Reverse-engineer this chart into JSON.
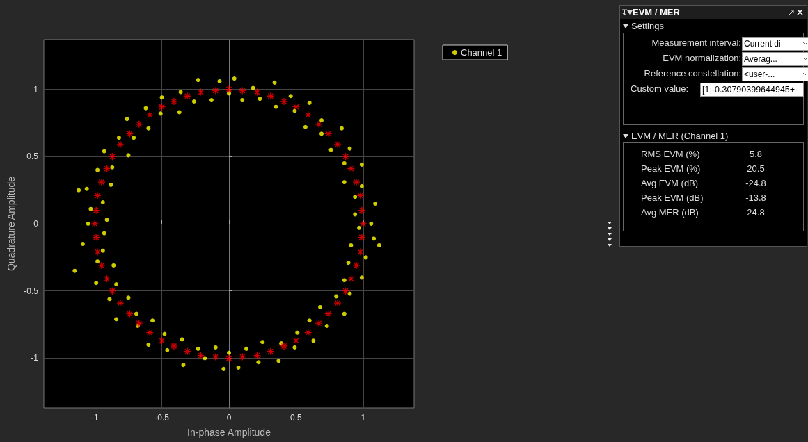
{
  "chart_data": [
    {
      "type": "scatter",
      "xlabel": "In-phase Amplitude",
      "ylabel": "Quadrature Amplitude",
      "xlim": [
        -1.38,
        1.38
      ],
      "ylim": [
        -1.37,
        1.37
      ],
      "xticks": [
        -1,
        -0.5,
        0,
        0.5,
        1
      ],
      "yticks": [
        -1,
        -0.5,
        0,
        0.5,
        1
      ],
      "grid": true,
      "legend": "top right",
      "series": [
        {
          "name": "Channel 1",
          "color": "#ffff00",
          "marker": "circle",
          "x": [
            1.06,
            0.94,
            1.09,
            0.94,
            0.99,
            0.86,
            0.99,
            0.86,
            0.9,
            0.76,
            0.84,
            0.69,
            0.69,
            0.57,
            0.6,
            0.49,
            0.46,
            0.35,
            0.34,
            0.23,
            0.18,
            0.1,
            0.04,
            0,
            -0.07,
            -0.13,
            -0.23,
            -0.26,
            -0.36,
            -0.37,
            -0.5,
            -0.51,
            -0.62,
            -0.6,
            -0.76,
            -0.71,
            -0.82,
            -0.75,
            -0.93,
            -0.87,
            -0.98,
            -0.88,
            -1.06,
            -0.94,
            -1.03,
            -0.91,
            -1.05,
            -0.93,
            -1.09,
            -0.94,
            -0.98,
            -0.86,
            -0.99,
            -0.84,
            -0.89,
            -0.75,
            -0.84,
            -0.69,
            -0.68,
            -0.57,
            -0.6,
            -0.48,
            -0.46,
            -0.35,
            -0.34,
            -0.23,
            -0.18,
            -0.1,
            -0.04,
            0,
            0.07,
            0.13,
            0.22,
            0.25,
            0.37,
            0.39,
            0.49,
            0.51,
            0.63,
            0.6,
            0.73,
            0.68,
            0.86,
            0.8,
            0.9,
            0.86,
            0.99,
            0.89,
            1.02,
            0.91,
            1.08,
            0.97,
            -1.15,
            -1.12,
            1.12
          ],
          "values": [
            0,
            0.07,
            0.15,
            0.2,
            0.28,
            0.31,
            0.44,
            0.45,
            0.56,
            0.55,
            0.71,
            0.67,
            0.77,
            0.72,
            0.9,
            0.84,
            0.95,
            0.87,
            1.05,
            0.93,
            1.01,
            0.92,
            1.08,
            0.97,
            1.06,
            0.92,
            1.07,
            0.91,
            0.98,
            0.83,
            0.94,
            0.82,
            0.86,
            0.71,
            0.78,
            0.64,
            0.64,
            0.51,
            0.54,
            0.42,
            0.4,
            0.29,
            0.26,
            0.16,
            0.11,
            0.03,
            0,
            -0.07,
            -0.15,
            -0.2,
            -0.28,
            -0.31,
            -0.44,
            -0.45,
            -0.56,
            -0.55,
            -0.71,
            -0.67,
            -0.76,
            -0.72,
            -0.9,
            -0.82,
            -0.94,
            -0.86,
            -1.05,
            -0.93,
            -1.0,
            -0.92,
            -1.08,
            -0.96,
            -1.07,
            -0.93,
            -1.03,
            -0.88,
            -1.02,
            -0.89,
            -0.92,
            -0.81,
            -0.87,
            -0.72,
            -0.76,
            -0.62,
            -0.67,
            -0.54,
            -0.52,
            -0.42,
            -0.4,
            -0.29,
            -0.25,
            -0.16,
            -0.11,
            -0.03,
            -0.35,
            0.25,
            -0.16
          ]
        },
        {
          "color": "#ff0000",
          "marker": "cross",
          "x": [
            1,
            0.99,
            0.98,
            0.95,
            0.91,
            0.87,
            0.81,
            0.74,
            0.67,
            0.59,
            0.5,
            0.41,
            0.31,
            0.21,
            0.1,
            0,
            -0.1,
            -0.21,
            -0.31,
            -0.41,
            -0.5,
            -0.59,
            -0.67,
            -0.74,
            -0.81,
            -0.87,
            -0.91,
            -0.95,
            -0.98,
            -0.99,
            -1,
            -0.99,
            -0.98,
            -0.95,
            -0.91,
            -0.87,
            -0.81,
            -0.74,
            -0.67,
            -0.59,
            -0.5,
            -0.41,
            -0.31,
            -0.21,
            -0.1,
            0,
            0.1,
            0.21,
            0.31,
            0.41,
            0.5,
            0.59,
            0.67,
            0.74,
            0.81,
            0.87,
            0.91,
            0.95,
            0.98,
            0.99
          ],
          "values": [
            0,
            0.1,
            0.21,
            0.31,
            0.41,
            0.5,
            0.59,
            0.67,
            0.74,
            0.81,
            0.87,
            0.91,
            0.95,
            0.98,
            0.99,
            1,
            0.99,
            0.98,
            0.95,
            0.91,
            0.87,
            0.81,
            0.74,
            0.67,
            0.59,
            0.5,
            0.41,
            0.31,
            0.21,
            0.1,
            0,
            -0.1,
            -0.21,
            -0.31,
            -0.41,
            -0.5,
            -0.59,
            -0.67,
            -0.74,
            -0.81,
            -0.87,
            -0.91,
            -0.95,
            -0.98,
            -0.99,
            -1,
            -0.99,
            -0.98,
            -0.95,
            -0.91,
            -0.87,
            -0.81,
            -0.74,
            -0.67,
            -0.59,
            -0.5,
            -0.41,
            -0.31,
            -0.21,
            -0.1
          ]
        }
      ]
    },
    {
      "type": "other",
      "title": "EVM / MER",
      "subtitle": "EVM / MER (Channel 1)",
      "annotations": [
        "Settings",
        "Measurement interval:",
        "Current di",
        "EVM normalization:",
        "Averag...",
        "Reference constellation:",
        "<user-...",
        "Custom value:",
        "[1;-0.30790399644945+"
      ],
      "categories": [
        "RMS EVM (%)",
        "Peak EVM (%)",
        "Avg EVM (dB)",
        "Peak EVM (dB)",
        "Avg MER (dB)"
      ],
      "values": [
        5.8,
        20.5,
        -24.8,
        -13.8,
        24.8
      ],
      "data_labels": true
    }
  ]
}
